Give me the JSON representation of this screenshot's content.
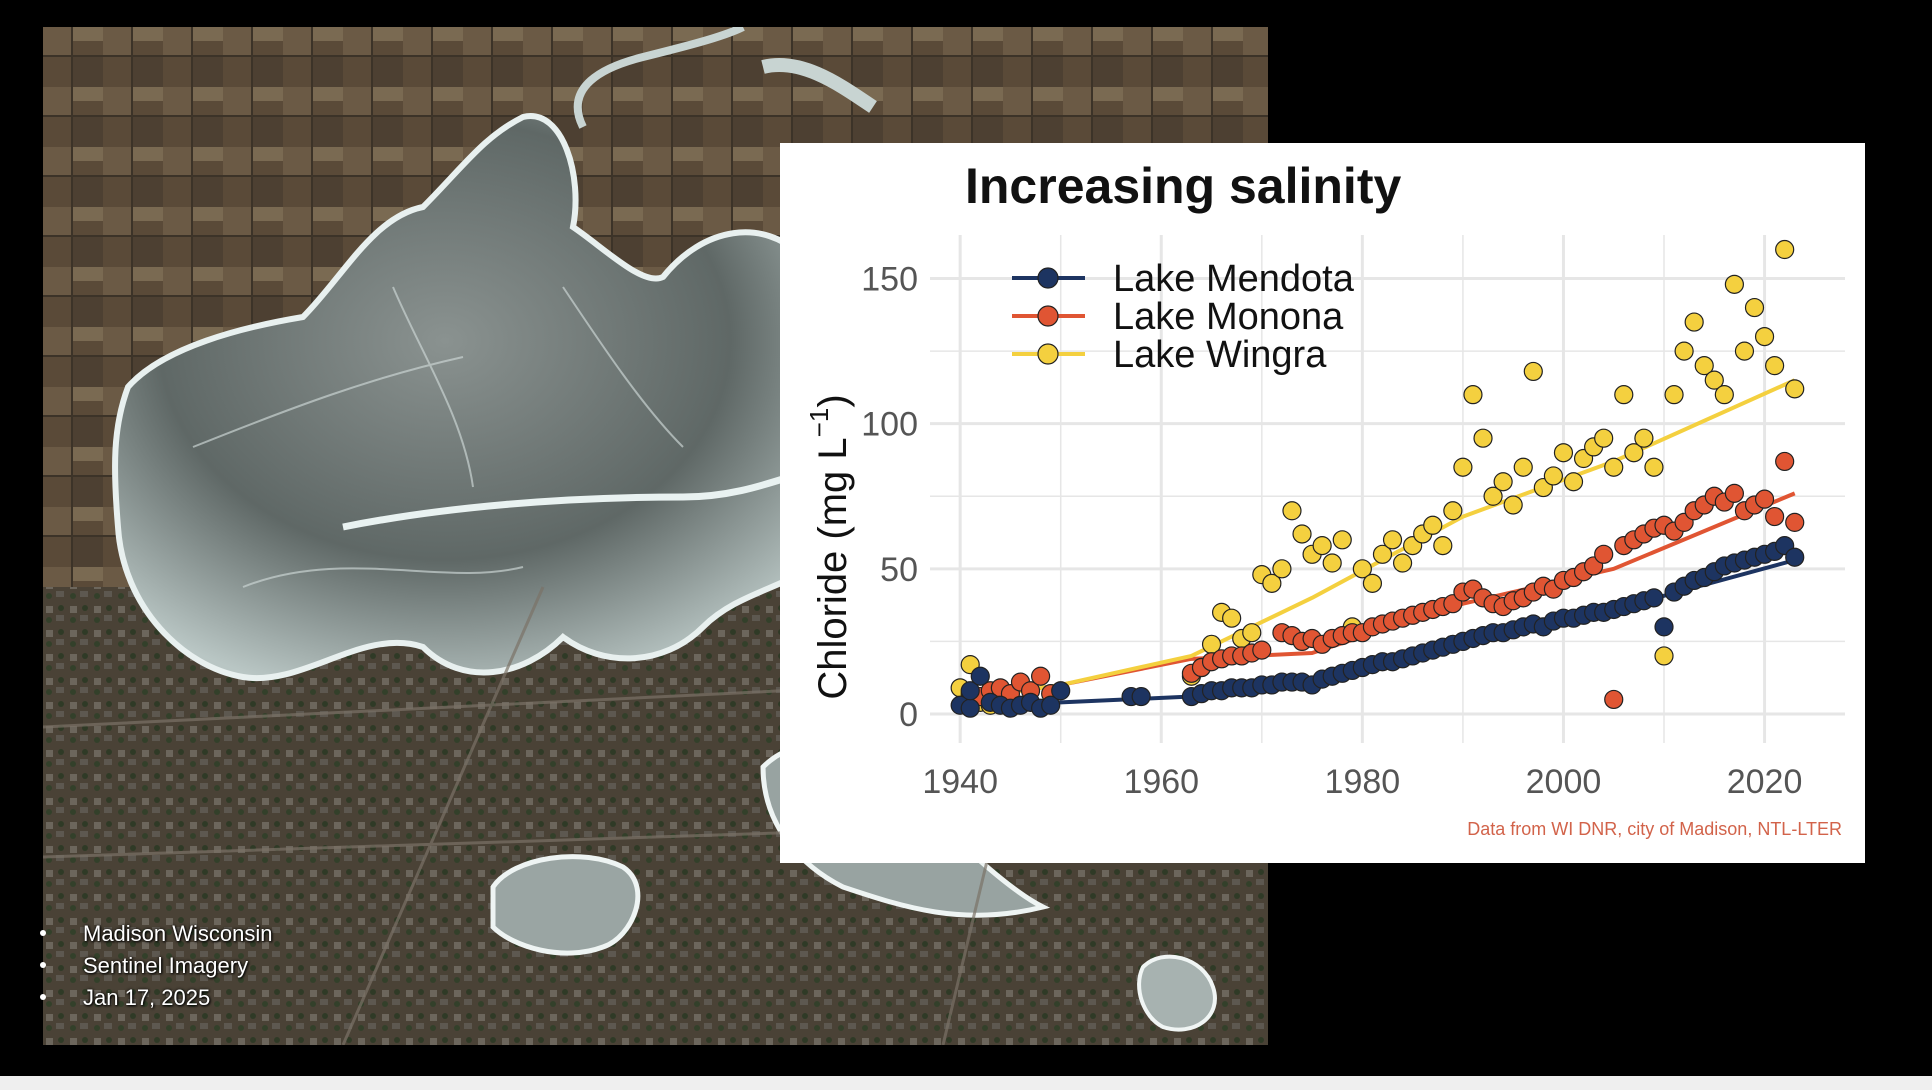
{
  "caption": {
    "lines": [
      "Madison Wisconsin",
      "Sentinel Imagery",
      "Jan 17, 2025"
    ]
  },
  "satellite": {
    "description_icon": "satellite-map-icon"
  },
  "chart_data": {
    "type": "scatter",
    "title": "Increasing salinity",
    "xlabel": "",
    "ylabel": "Chloride (mg L",
    "ylabel_suffix": ")",
    "ylabel_superscript": "−1",
    "xlim": [
      1937,
      2028
    ],
    "ylim": [
      -10,
      165
    ],
    "xticks": [
      1940,
      1960,
      1980,
      2000,
      2020
    ],
    "yticks": [
      0,
      50,
      100,
      150
    ],
    "grid": true,
    "legend_position": "top-left",
    "source_note": "Data from WI DNR, city of Madison, NTL-LTER",
    "series": [
      {
        "name": "Lake Mendota",
        "color": "#1d3461",
        "trend": [
          [
            1940,
            2
          ],
          [
            1950,
            4
          ],
          [
            1963,
            6
          ],
          [
            1975,
            11
          ],
          [
            1990,
            27
          ],
          [
            2005,
            36
          ],
          [
            2023,
            53
          ]
        ],
        "points": [
          [
            1940,
            3
          ],
          [
            1941,
            2
          ],
          [
            1941,
            8
          ],
          [
            1942,
            13
          ],
          [
            1943,
            4
          ],
          [
            1944,
            3
          ],
          [
            1945,
            2
          ],
          [
            1946,
            3
          ],
          [
            1947,
            4
          ],
          [
            1948,
            2
          ],
          [
            1949,
            3
          ],
          [
            1950,
            8
          ],
          [
            1957,
            6
          ],
          [
            1958,
            6
          ],
          [
            1963,
            6
          ],
          [
            1964,
            7
          ],
          [
            1965,
            8
          ],
          [
            1966,
            8
          ],
          [
            1967,
            9
          ],
          [
            1968,
            9
          ],
          [
            1969,
            9
          ],
          [
            1970,
            10
          ],
          [
            1971,
            10
          ],
          [
            1972,
            11
          ],
          [
            1973,
            11
          ],
          [
            1974,
            11
          ],
          [
            1975,
            10
          ],
          [
            1976,
            12
          ],
          [
            1977,
            13
          ],
          [
            1978,
            14
          ],
          [
            1979,
            15
          ],
          [
            1980,
            16
          ],
          [
            1981,
            17
          ],
          [
            1982,
            18
          ],
          [
            1983,
            18
          ],
          [
            1984,
            19
          ],
          [
            1985,
            20
          ],
          [
            1986,
            21
          ],
          [
            1987,
            22
          ],
          [
            1988,
            23
          ],
          [
            1989,
            24
          ],
          [
            1990,
            25
          ],
          [
            1991,
            26
          ],
          [
            1992,
            27
          ],
          [
            1993,
            28
          ],
          [
            1994,
            28
          ],
          [
            1995,
            29
          ],
          [
            1996,
            30
          ],
          [
            1997,
            31
          ],
          [
            1998,
            30
          ],
          [
            1999,
            32
          ],
          [
            2000,
            33
          ],
          [
            2001,
            33
          ],
          [
            2002,
            34
          ],
          [
            2003,
            35
          ],
          [
            2004,
            35
          ],
          [
            2005,
            36
          ],
          [
            2006,
            37
          ],
          [
            2007,
            38
          ],
          [
            2008,
            39
          ],
          [
            2009,
            40
          ],
          [
            2010,
            30
          ],
          [
            2011,
            42
          ],
          [
            2012,
            44
          ],
          [
            2013,
            46
          ],
          [
            2014,
            47
          ],
          [
            2015,
            49
          ],
          [
            2016,
            51
          ],
          [
            2017,
            52
          ],
          [
            2018,
            53
          ],
          [
            2019,
            54
          ],
          [
            2020,
            55
          ],
          [
            2021,
            56
          ],
          [
            2022,
            58
          ],
          [
            2023,
            54
          ]
        ]
      },
      {
        "name": "Lake Monona",
        "color": "#e05533",
        "trend": [
          [
            1940,
            5
          ],
          [
            1950,
            10
          ],
          [
            1963,
            19
          ],
          [
            1975,
            21
          ],
          [
            1990,
            38
          ],
          [
            2005,
            50
          ],
          [
            2023,
            76
          ]
        ],
        "points": [
          [
            1941,
            7
          ],
          [
            1942,
            6
          ],
          [
            1943,
            8
          ],
          [
            1944,
            9
          ],
          [
            1945,
            7
          ],
          [
            1946,
            11
          ],
          [
            1947,
            8
          ],
          [
            1948,
            13
          ],
          [
            1949,
            7
          ],
          [
            1963,
            14
          ],
          [
            1964,
            16
          ],
          [
            1965,
            18
          ],
          [
            1966,
            19
          ],
          [
            1967,
            20
          ],
          [
            1968,
            20
          ],
          [
            1969,
            21
          ],
          [
            1970,
            22
          ],
          [
            1972,
            28
          ],
          [
            1973,
            27
          ],
          [
            1974,
            25
          ],
          [
            1975,
            26
          ],
          [
            1976,
            24
          ],
          [
            1977,
            26
          ],
          [
            1978,
            27
          ],
          [
            1979,
            28
          ],
          [
            1980,
            28
          ],
          [
            1981,
            30
          ],
          [
            1982,
            31
          ],
          [
            1983,
            32
          ],
          [
            1984,
            33
          ],
          [
            1985,
            34
          ],
          [
            1986,
            35
          ],
          [
            1987,
            36
          ],
          [
            1988,
            37
          ],
          [
            1989,
            38
          ],
          [
            1990,
            42
          ],
          [
            1991,
            43
          ],
          [
            1992,
            40
          ],
          [
            1993,
            38
          ],
          [
            1994,
            37
          ],
          [
            1995,
            39
          ],
          [
            1996,
            40
          ],
          [
            1997,
            42
          ],
          [
            1998,
            44
          ],
          [
            1999,
            43
          ],
          [
            2000,
            46
          ],
          [
            2001,
            47
          ],
          [
            2002,
            49
          ],
          [
            2003,
            51
          ],
          [
            2004,
            55
          ],
          [
            2005,
            5
          ],
          [
            2006,
            58
          ],
          [
            2007,
            60
          ],
          [
            2008,
            62
          ],
          [
            2009,
            64
          ],
          [
            2010,
            65
          ],
          [
            2011,
            63
          ],
          [
            2012,
            66
          ],
          [
            2013,
            70
          ],
          [
            2014,
            72
          ],
          [
            2015,
            75
          ],
          [
            2016,
            73
          ],
          [
            2017,
            76
          ],
          [
            2018,
            70
          ],
          [
            2019,
            72
          ],
          [
            2020,
            74
          ],
          [
            2021,
            68
          ],
          [
            2022,
            87
          ],
          [
            2023,
            66
          ]
        ]
      },
      {
        "name": "Lake Wingra",
        "color": "#f4d03f",
        "trend": [
          [
            1940,
            5
          ],
          [
            1950,
            10
          ],
          [
            1963,
            20
          ],
          [
            1975,
            40
          ],
          [
            1990,
            68
          ],
          [
            2005,
            87
          ],
          [
            2023,
            115
          ]
        ],
        "points": [
          [
            1940,
            9
          ],
          [
            1941,
            6
          ],
          [
            1941,
            17
          ],
          [
            1942,
            4
          ],
          [
            1943,
            3
          ],
          [
            1963,
            13
          ],
          [
            1964,
            16
          ],
          [
            1965,
            24
          ],
          [
            1966,
            35
          ],
          [
            1967,
            33
          ],
          [
            1968,
            26
          ],
          [
            1969,
            28
          ],
          [
            1970,
            48
          ],
          [
            1971,
            45
          ],
          [
            1972,
            50
          ],
          [
            1973,
            70
          ],
          [
            1974,
            62
          ],
          [
            1975,
            55
          ],
          [
            1976,
            58
          ],
          [
            1977,
            52
          ],
          [
            1978,
            60
          ],
          [
            1979,
            30
          ],
          [
            1980,
            50
          ],
          [
            1981,
            45
          ],
          [
            1982,
            55
          ],
          [
            1983,
            60
          ],
          [
            1984,
            52
          ],
          [
            1985,
            58
          ],
          [
            1986,
            62
          ],
          [
            1987,
            65
          ],
          [
            1988,
            58
          ],
          [
            1989,
            70
          ],
          [
            1990,
            85
          ],
          [
            1991,
            110
          ],
          [
            1992,
            95
          ],
          [
            1993,
            75
          ],
          [
            1994,
            80
          ],
          [
            1995,
            72
          ],
          [
            1996,
            85
          ],
          [
            1997,
            118
          ],
          [
            1998,
            78
          ],
          [
            1999,
            82
          ],
          [
            2000,
            90
          ],
          [
            2001,
            80
          ],
          [
            2002,
            88
          ],
          [
            2003,
            92
          ],
          [
            2004,
            95
          ],
          [
            2005,
            85
          ],
          [
            2006,
            110
          ],
          [
            2007,
            90
          ],
          [
            2008,
            95
          ],
          [
            2009,
            85
          ],
          [
            2010,
            20
          ],
          [
            2011,
            110
          ],
          [
            2012,
            125
          ],
          [
            2013,
            135
          ],
          [
            2014,
            120
          ],
          [
            2015,
            115
          ],
          [
            2016,
            110
          ],
          [
            2017,
            148
          ],
          [
            2018,
            125
          ],
          [
            2019,
            140
          ],
          [
            2020,
            130
          ],
          [
            2021,
            120
          ],
          [
            2022,
            160
          ],
          [
            2023,
            112
          ]
        ]
      }
    ]
  }
}
